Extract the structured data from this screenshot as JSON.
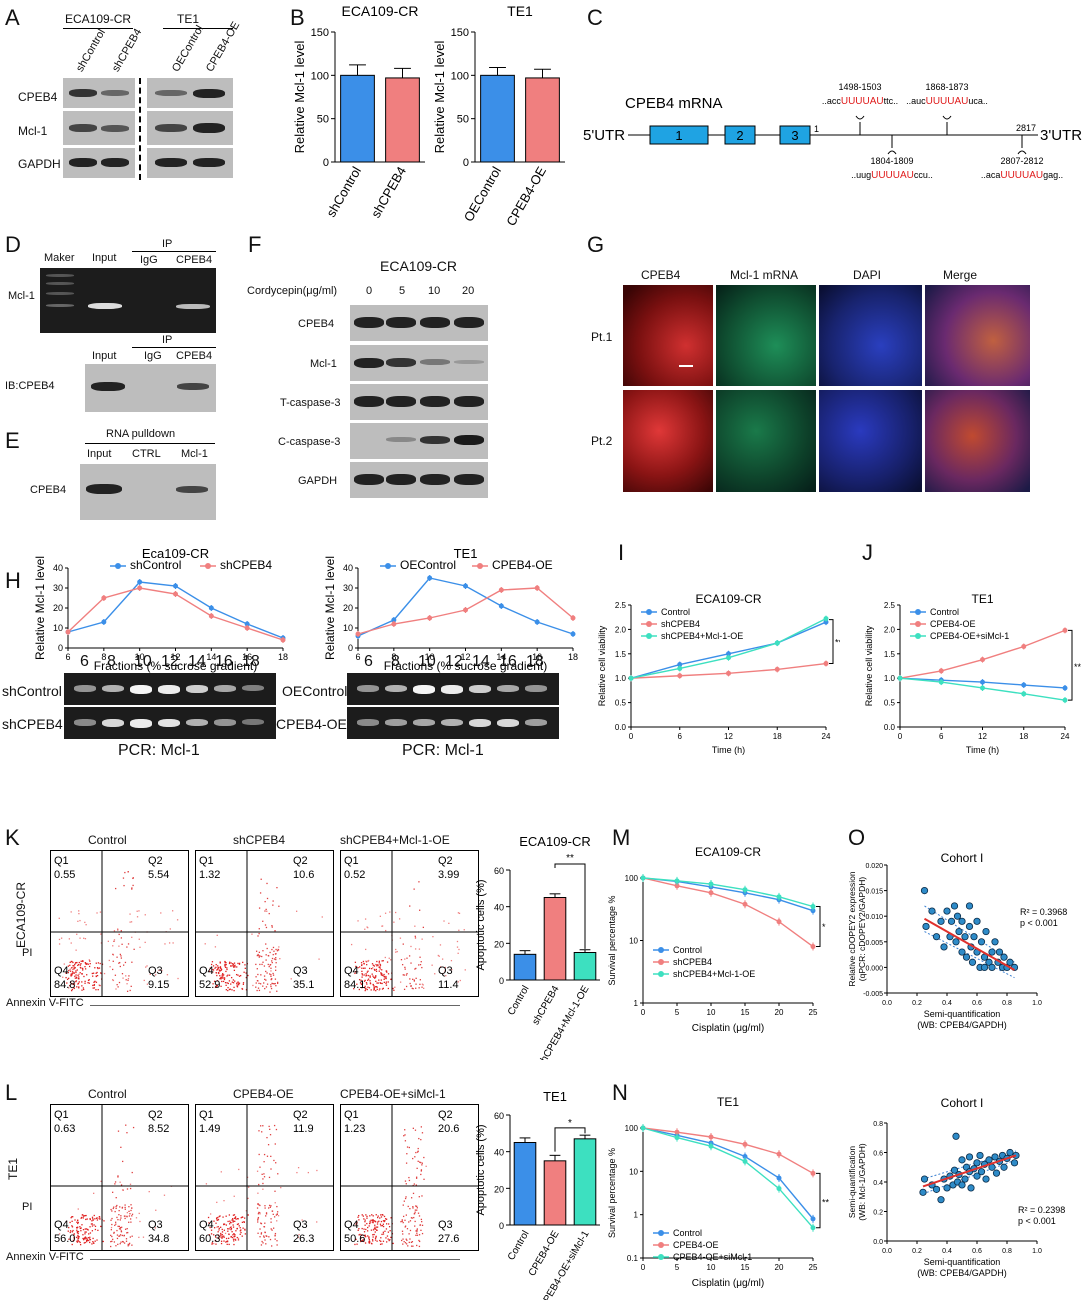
{
  "panels": {
    "A": {
      "label": "A",
      "groups": [
        "ECA109-CR",
        "TE1"
      ],
      "lanes": [
        "shControl",
        "shCPEB4",
        "OEControl",
        "CPEB4-OE"
      ],
      "rows": [
        "CPEB4",
        "Mcl-1",
        "GAPDH"
      ]
    },
    "B": {
      "label": "B"
    },
    "C": {
      "label": "C",
      "title": "CPEB4 mRNA",
      "utr5": "5'UTR",
      "utr3": "3'UTR",
      "exons": [
        "1",
        "2",
        "3"
      ],
      "pos_start": "1",
      "pos_end": "2817",
      "sites": [
        {
          "range": "1498-1503",
          "pre": "..acc",
          "motif": "UUUUAU",
          "post": "ttc.."
        },
        {
          "range": "1868-1873",
          "pre": "..auc",
          "motif": "UUUUAU",
          "post": "uca.."
        },
        {
          "range": "1804-1809",
          "pre": "..uug",
          "motif": "UUUUAU",
          "post": "ccu.."
        },
        {
          "range": "2807-2812",
          "pre": "..aca",
          "motif": "UUUUAU",
          "post": "gag.."
        }
      ]
    },
    "D": {
      "label": "D",
      "top_lanes": [
        "Maker",
        "Input",
        "IgG",
        "CPEB4"
      ],
      "ip": "IP",
      "row_top": "Mcl-1",
      "bottom_lanes": [
        "Input",
        "IgG",
        "CPEB4"
      ],
      "row_bottom": "IB:CPEB4"
    },
    "E": {
      "label": "E",
      "header": "RNA pulldown",
      "lanes": [
        "Input",
        "CTRL",
        "Mcl-1"
      ],
      "row": "CPEB4"
    },
    "F": {
      "label": "F",
      "title": "ECA109-CR",
      "dose_label": "Cordycepin(μg/ml)",
      "doses": [
        "0",
        "5",
        "10",
        "20"
      ],
      "rows": [
        "CPEB4",
        "Mcl-1",
        "T-caspase-3",
        "C-caspase-3",
        "GAPDH"
      ]
    },
    "G": {
      "label": "G",
      "cols": [
        "CPEB4",
        "Mcl-1 mRNA",
        "DAPI",
        "Merge"
      ],
      "rows": [
        "Pt.1",
        "Pt.2"
      ]
    },
    "H": {
      "label": "H",
      "gel_cols": [
        "6",
        "8",
        "10",
        "12",
        "14",
        "16",
        "18"
      ],
      "left_rows": [
        "shControl",
        "shCPEB4"
      ],
      "right_rows": [
        "OEControl",
        "CPEB4-OE"
      ],
      "pcr": "PCR: Mcl-1"
    },
    "I": {
      "label": "I",
      "sig": "**"
    },
    "J": {
      "label": "J",
      "sig": "**"
    },
    "K": {
      "label": "K",
      "ylab": "ECA109-CR",
      "sig": "**"
    },
    "L": {
      "label": "L",
      "ylab": "TE1",
      "sig": "*"
    },
    "M": {
      "label": "M",
      "sig": "*"
    },
    "N": {
      "label": "N",
      "sig": "**"
    },
    "O": {
      "label": "O"
    }
  },
  "flow": {
    "x_axis": "Annexin V-FITC",
    "y_axis": "PI",
    "K": [
      {
        "title": "Control",
        "q1": "0.55",
        "q2": "5.54",
        "q3": "9.15",
        "q4": "84.8"
      },
      {
        "title": "shCPEB4",
        "q1": "1.32",
        "q2": "10.6",
        "q3": "35.1",
        "q4": "52.9"
      },
      {
        "title": "shCPEB4+Mcl-1-OE",
        "q1": "0.52",
        "q2": "3.99",
        "q3": "11.4",
        "q4": "84.1"
      }
    ],
    "L": [
      {
        "title": "Control",
        "q1": "0.63",
        "q2": "8.52",
        "q3": "34.8",
        "q4": "56.0"
      },
      {
        "title": "CPEB4-OE",
        "q1": "1.49",
        "q2": "11.9",
        "q3": "26.3",
        "q4": "60.3"
      },
      {
        "title": "CPEB4-OE+siMcl-1",
        "q1": "1.23",
        "q2": "20.6",
        "q3": "27.6",
        "q4": "50.6"
      }
    ],
    "quadrants": [
      "Q1",
      "Q2",
      "Q3",
      "Q4"
    ]
  },
  "colors": {
    "blue": "#3b8fe8",
    "red": "#f07f7f",
    "cyan": "#3de0c0",
    "dark_red": "#e0312c",
    "dot": "#2e8bc8"
  },
  "chart_data": [
    {
      "id": "B-left",
      "type": "bar",
      "title": "ECA109-CR",
      "ylabel": "Relative Mcl-1 level",
      "categories": [
        "shControl",
        "shCPEB4"
      ],
      "values": [
        100,
        97
      ],
      "errors": [
        12,
        11
      ],
      "ylim": [
        0,
        150
      ],
      "yticks": [
        "0",
        "50",
        "100",
        "150"
      ]
    },
    {
      "id": "B-right",
      "type": "bar",
      "title": "TE1",
      "ylabel": "Relative Mcl-1 level",
      "categories": [
        "OEControl",
        "CPEB4-OE"
      ],
      "values": [
        100,
        97
      ],
      "errors": [
        9,
        10
      ],
      "ylim": [
        0,
        150
      ],
      "yticks": [
        "0",
        "50",
        "100",
        "150"
      ]
    },
    {
      "id": "H-left",
      "type": "line",
      "title": "Eca109-CR",
      "xlabel": "Fractions (% sucrose gradient)",
      "ylabel": "Relative Mcl-1 level",
      "x": [
        6,
        8,
        10,
        12,
        14,
        16,
        18
      ],
      "xticks": [
        "6",
        "8",
        "10",
        "12",
        "14",
        "16",
        "18"
      ],
      "yticks": [
        "0",
        "10",
        "20",
        "30",
        "40"
      ],
      "ylim": [
        0,
        40
      ],
      "series": [
        {
          "name": "shControl",
          "values": [
            8,
            13,
            33,
            31,
            20,
            12,
            5
          ]
        },
        {
          "name": "shCPEB4",
          "values": [
            8,
            25,
            30,
            27,
            16,
            10,
            4
          ]
        }
      ]
    },
    {
      "id": "H-right",
      "type": "line",
      "title": "TE1",
      "xlabel": "Fractions (% sucrose gradient)",
      "ylabel": "Relative Mcl-1 level",
      "x": [
        6,
        8,
        10,
        12,
        14,
        16,
        18
      ],
      "xticks": [
        "6",
        "8",
        "10",
        "12",
        "14",
        "16",
        "18"
      ],
      "yticks": [
        "0",
        "10",
        "20",
        "30",
        "40"
      ],
      "ylim": [
        0,
        40
      ],
      "series": [
        {
          "name": "OEControl",
          "values": [
            6,
            14,
            35,
            31,
            21,
            13,
            7
          ]
        },
        {
          "name": "CPEB4-OE",
          "values": [
            7,
            12,
            15,
            19,
            29,
            30,
            15
          ]
        }
      ]
    },
    {
      "id": "I",
      "type": "line",
      "title": "ECA109-CR",
      "xlabel": "Time (h)",
      "ylabel": "Relative cell viability",
      "x": [
        0,
        6,
        12,
        18,
        24
      ],
      "xticks": [
        "0",
        "6",
        "12",
        "18",
        "24"
      ],
      "yticks": [
        "0.0",
        "0.5",
        "1.0",
        "1.5",
        "2.0",
        "2.5"
      ],
      "ylim": [
        0,
        2.5
      ],
      "series": [
        {
          "name": "Control",
          "values": [
            1.0,
            1.28,
            1.5,
            1.72,
            2.15
          ]
        },
        {
          "name": "shCPEB4",
          "values": [
            1.0,
            1.05,
            1.1,
            1.18,
            1.3
          ]
        },
        {
          "name": "shCPEB4+Mcl-1-OE",
          "values": [
            1.0,
            1.2,
            1.42,
            1.72,
            2.22
          ]
        }
      ]
    },
    {
      "id": "J",
      "type": "line",
      "title": "TE1",
      "xlabel": "Time (h)",
      "ylabel": "Relative cell viability",
      "x": [
        0,
        6,
        12,
        18,
        24
      ],
      "xticks": [
        "0",
        "6",
        "12",
        "18",
        "24"
      ],
      "yticks": [
        "0.0",
        "0.5",
        "1.0",
        "1.5",
        "2.0",
        "2.5"
      ],
      "ylim": [
        0,
        2.5
      ],
      "series": [
        {
          "name": "Control",
          "values": [
            1.0,
            0.96,
            0.92,
            0.86,
            0.8
          ]
        },
        {
          "name": "CPEB4-OE",
          "values": [
            1.0,
            1.15,
            1.38,
            1.65,
            1.98
          ]
        },
        {
          "name": "CPEB4-OE+siMcl-1",
          "values": [
            1.0,
            0.92,
            0.8,
            0.68,
            0.55
          ]
        }
      ]
    },
    {
      "id": "K-bar",
      "type": "bar",
      "title": "ECA109-CR",
      "ylabel": "Apoptotic cells (%)",
      "categories": [
        "Control",
        "shCPEB4",
        "shCPEB4+Mcl-1-OE"
      ],
      "values": [
        14,
        45,
        15
      ],
      "errors": [
        2,
        2,
        1.5
      ],
      "ylim": [
        0,
        60
      ],
      "yticks": [
        "0",
        "20",
        "40",
        "60"
      ]
    },
    {
      "id": "L-bar",
      "type": "bar",
      "title": "TE1",
      "ylabel": "Apoptotic cells (%)",
      "categories": [
        "Control",
        "CPEB4-OE",
        "CPEB4-OE+siMcl-1"
      ],
      "values": [
        45,
        35,
        47
      ],
      "errors": [
        2.5,
        3,
        2
      ],
      "ylim": [
        0,
        60
      ],
      "yticks": [
        "0",
        "20",
        "40",
        "60"
      ]
    },
    {
      "id": "M",
      "type": "line",
      "title": "ECA109-CR",
      "xlabel": "Cisplatin (μg/ml)",
      "ylabel": "Survival percentage %",
      "x": [
        0,
        5,
        10,
        15,
        20,
        25
      ],
      "xticks": [
        "0",
        "5",
        "10",
        "15",
        "20",
        "25"
      ],
      "yticks": [
        "1",
        "10",
        "100"
      ],
      "ylim": [
        1,
        100
      ],
      "log_y": true,
      "series": [
        {
          "name": "Control",
          "values": [
            100,
            88,
            72,
            58,
            45,
            30
          ]
        },
        {
          "name": "shCPEB4",
          "values": [
            100,
            75,
            58,
            38,
            20,
            8
          ]
        },
        {
          "name": "shCPEB4+Mcl-1-OE",
          "values": [
            100,
            90,
            80,
            65,
            50,
            35
          ]
        }
      ]
    },
    {
      "id": "N",
      "type": "line",
      "title": "TE1",
      "xlabel": "Cisplatin (μg/ml)",
      "ylabel": "Survival percentage %",
      "x": [
        0,
        5,
        10,
        15,
        20,
        25
      ],
      "xticks": [
        "0",
        "5",
        "10",
        "15",
        "20",
        "25"
      ],
      "yticks": [
        "0.1",
        "1",
        "10",
        "100"
      ],
      "ylim": [
        0.1,
        100
      ],
      "log_y": true,
      "series": [
        {
          "name": "Control",
          "values": [
            100,
            68,
            45,
            22,
            7,
            0.8
          ]
        },
        {
          "name": "CPEB4-OE",
          "values": [
            100,
            80,
            62,
            42,
            25,
            9
          ]
        },
        {
          "name": "CPEB4-OE+siMcl-1",
          "values": [
            100,
            60,
            38,
            17,
            4,
            0.5
          ]
        }
      ]
    },
    {
      "id": "O-top",
      "type": "scatter",
      "title": "Cohort I",
      "xlabel": "Semi-quantification\n(WB: CPEB4/GAPDH)",
      "ylabel": "Relative cDOPEY2 expression\n(qPCR: cDOPEY2/GAPDH)",
      "xticks": [
        "0.0",
        "0.2",
        "0.4",
        "0.6",
        "0.8",
        "1.0"
      ],
      "yticks": [
        "-0.005",
        "0.000",
        "0.005",
        "0.010",
        "0.015",
        "0.020"
      ],
      "xlim": [
        0,
        1
      ],
      "ylim": [
        -0.005,
        0.02
      ],
      "r2": "R² = 0.3968",
      "p": "p < 0.001",
      "points": [
        [
          0.25,
          0.015
        ],
        [
          0.26,
          0.008
        ],
        [
          0.3,
          0.011
        ],
        [
          0.33,
          0.006
        ],
        [
          0.36,
          0.009
        ],
        [
          0.38,
          0.004
        ],
        [
          0.4,
          0.011
        ],
        [
          0.42,
          0.006
        ],
        [
          0.43,
          0.009
        ],
        [
          0.45,
          0.012
        ],
        [
          0.46,
          0.005
        ],
        [
          0.48,
          0.007
        ],
        [
          0.5,
          0.003
        ],
        [
          0.5,
          0.009
        ],
        [
          0.52,
          0.006
        ],
        [
          0.53,
          0.002
        ],
        [
          0.55,
          0.008
        ],
        [
          0.56,
          0.004
        ],
        [
          0.57,
          0.001
        ],
        [
          0.58,
          0.006
        ],
        [
          0.6,
          0.003
        ],
        [
          0.6,
          0.009
        ],
        [
          0.62,
          0.0
        ],
        [
          0.63,
          0.005
        ],
        [
          0.65,
          0.002
        ],
        [
          0.66,
          0.007
        ],
        [
          0.68,
          0.001
        ],
        [
          0.7,
          0.003
        ],
        [
          0.7,
          0.0
        ],
        [
          0.72,
          0.005
        ],
        [
          0.74,
          0.001
        ],
        [
          0.75,
          0.003
        ],
        [
          0.77,
          0.0
        ],
        [
          0.78,
          0.002
        ],
        [
          0.8,
          0.0
        ],
        [
          0.82,
          0.001
        ],
        [
          0.85,
          0.0
        ],
        [
          0.55,
          0.012
        ],
        [
          0.47,
          0.01
        ],
        [
          0.65,
          0.0
        ]
      ],
      "fit": [
        [
          0.25,
          0.0095
        ],
        [
          0.85,
          -0.0005
        ]
      ]
    },
    {
      "id": "O-bottom",
      "type": "scatter",
      "title": "Cohort I",
      "xlabel": "Semi-quantification\n(WB: CPEB4/GAPDH)",
      "ylabel": "Semi-quantification\n(WB: Mcl-1/GAPDH)",
      "xticks": [
        "0.0",
        "0.2",
        "0.4",
        "0.6",
        "0.8",
        "1.0"
      ],
      "yticks": [
        "0.0",
        "0.2",
        "0.4",
        "0.6",
        "0.8"
      ],
      "xlim": [
        0,
        1
      ],
      "ylim": [
        0,
        0.8
      ],
      "r2": "R² = 0.2398",
      "p": "p < 0.001",
      "points": [
        [
          0.24,
          0.33
        ],
        [
          0.25,
          0.42
        ],
        [
          0.3,
          0.38
        ],
        [
          0.33,
          0.35
        ],
        [
          0.36,
          0.28
        ],
        [
          0.38,
          0.42
        ],
        [
          0.4,
          0.36
        ],
        [
          0.42,
          0.44
        ],
        [
          0.44,
          0.38
        ],
        [
          0.45,
          0.48
        ],
        [
          0.46,
          0.71
        ],
        [
          0.47,
          0.4
        ],
        [
          0.48,
          0.45
        ],
        [
          0.5,
          0.38
        ],
        [
          0.5,
          0.55
        ],
        [
          0.52,
          0.42
        ],
        [
          0.53,
          0.5
        ],
        [
          0.55,
          0.47
        ],
        [
          0.55,
          0.57
        ],
        [
          0.56,
          0.36
        ],
        [
          0.58,
          0.49
        ],
        [
          0.6,
          0.53
        ],
        [
          0.6,
          0.44
        ],
        [
          0.62,
          0.58
        ],
        [
          0.63,
          0.47
        ],
        [
          0.65,
          0.52
        ],
        [
          0.66,
          0.42
        ],
        [
          0.68,
          0.55
        ],
        [
          0.7,
          0.5
        ],
        [
          0.72,
          0.57
        ],
        [
          0.73,
          0.46
        ],
        [
          0.75,
          0.54
        ],
        [
          0.77,
          0.58
        ],
        [
          0.78,
          0.5
        ],
        [
          0.8,
          0.56
        ],
        [
          0.82,
          0.6
        ],
        [
          0.85,
          0.53
        ],
        [
          0.86,
          0.58
        ]
      ],
      "fit": [
        [
          0.24,
          0.37
        ],
        [
          0.86,
          0.58
        ]
      ]
    }
  ]
}
